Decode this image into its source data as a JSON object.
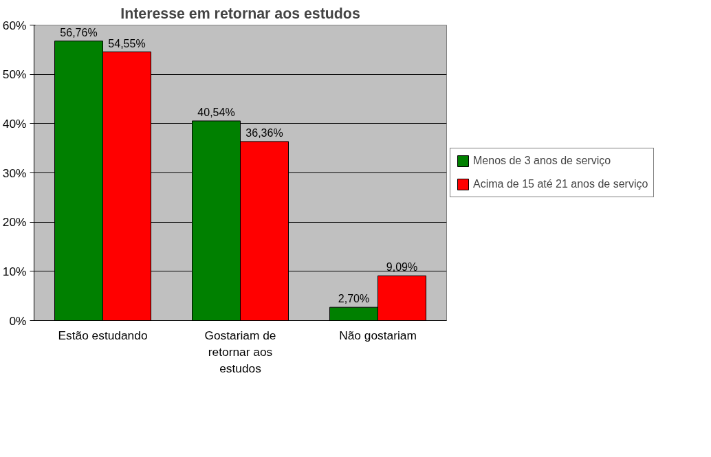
{
  "chart_data": {
    "type": "bar",
    "title": "Interesse em retornar aos estudos",
    "categories": [
      "Estão estudando",
      "Gostariam de retornar aos estudos",
      "Não gostariam"
    ],
    "series": [
      {
        "name": "Menos de 3 anos de serviço",
        "color": "#008000",
        "values": [
          56.76,
          40.54,
          2.7
        ],
        "value_labels": [
          "56,76%",
          "40,54%",
          "2,70%"
        ]
      },
      {
        "name": "Acima de 15 até 21 anos de serviço",
        "color": "#ff0000",
        "values": [
          54.55,
          36.36,
          9.09
        ],
        "value_labels": [
          "54,55%",
          "36,36%",
          "9,09%"
        ]
      }
    ],
    "ylim": [
      0,
      60
    ],
    "yticks": [
      {
        "value": 0,
        "label": "0%"
      },
      {
        "value": 10,
        "label": "10%"
      },
      {
        "value": 20,
        "label": "20%"
      },
      {
        "value": 30,
        "label": "30%"
      },
      {
        "value": 40,
        "label": "40%"
      },
      {
        "value": 50,
        "label": "50%"
      },
      {
        "value": 60,
        "label": "60%"
      }
    ],
    "grid": "y",
    "legend": "right"
  }
}
